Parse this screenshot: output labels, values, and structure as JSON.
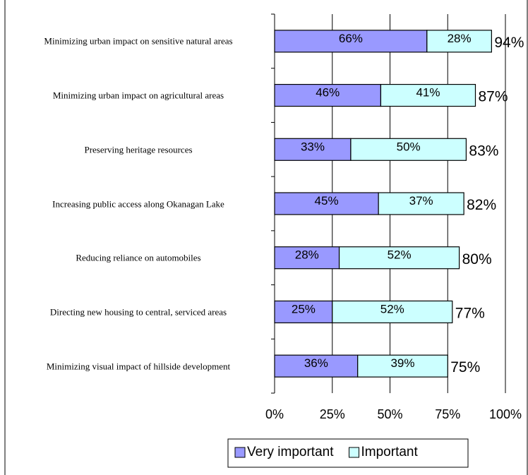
{
  "chart_data": {
    "type": "stacked-bar-horizontal",
    "categories": [
      "Minimizing urban impact on sensitive natural areas",
      "Minimizing urban impact on agricultural areas",
      "Preserving heritage resources",
      "Increasing public access along Okanagan Lake",
      "Reducing reliance on automobiles",
      "Directing new housing to central, serviced areas",
      "Minimizing visual impact of hillside development"
    ],
    "series": [
      {
        "name": "Very important",
        "color": "#9999ff",
        "values": [
          66,
          46,
          33,
          45,
          28,
          25,
          36
        ],
        "value_labels": [
          "66%",
          "46%",
          "33%",
          "45%",
          "28%",
          "25%",
          "36%"
        ]
      },
      {
        "name": "Important",
        "color": "#ccffff",
        "values": [
          28,
          41,
          50,
          37,
          52,
          52,
          39
        ],
        "value_labels": [
          "28%",
          "41%",
          "50%",
          "37%",
          "52%",
          "52%",
          "39%"
        ]
      }
    ],
    "totals": [
      94,
      87,
      83,
      82,
      80,
      77,
      75
    ],
    "total_labels": [
      "94%",
      "87%",
      "83%",
      "82%",
      "80%",
      "77%",
      "75%"
    ],
    "xlim": [
      0,
      100
    ],
    "xticks": [
      {
        "value": 0,
        "label": "0%"
      },
      {
        "value": 25,
        "label": "25%"
      },
      {
        "value": 50,
        "label": "50%"
      },
      {
        "value": 75,
        "label": "75%"
      },
      {
        "value": 100,
        "label": "100%"
      }
    ],
    "grid": true
  }
}
